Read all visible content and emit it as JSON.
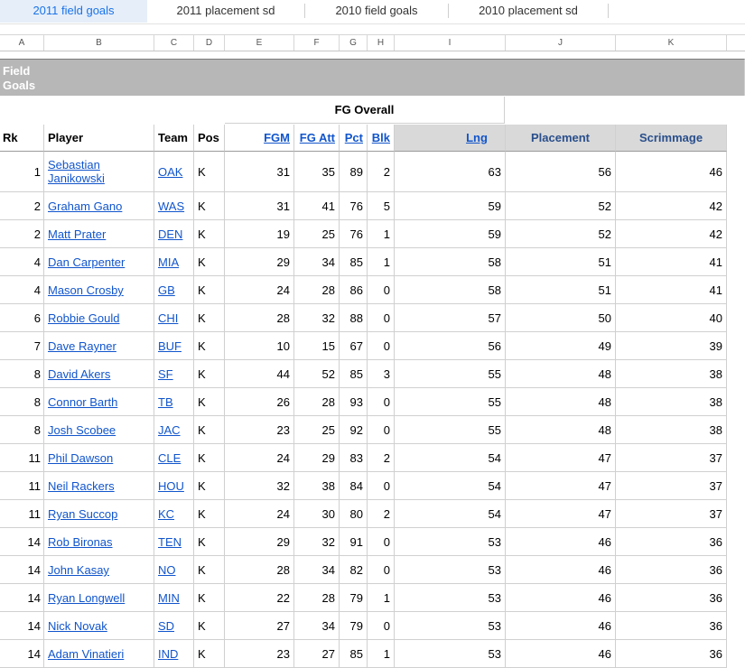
{
  "tabs": [
    {
      "label": "2011 field goals",
      "active": true
    },
    {
      "label": "2011 placement sd",
      "active": false
    },
    {
      "label": "2010 field goals",
      "active": false
    },
    {
      "label": "2010 placement sd",
      "active": false
    }
  ],
  "column_letters": [
    "A",
    "B",
    "C",
    "D",
    "E",
    "F",
    "G",
    "H",
    "I",
    "J",
    "K"
  ],
  "sheet": {
    "section_title_line1": "Field",
    "section_title_line2": "Goals",
    "group_header": "FG Overall",
    "headers": {
      "rk": "Rk",
      "player": "Player",
      "team": "Team",
      "pos": "Pos",
      "fgm": "FGM",
      "fgatt": "FG Att",
      "pct": "Pct",
      "blk": "Blk",
      "lng": "Lng",
      "placement": "Placement",
      "scrimmage": "Scrimmage"
    },
    "rows": [
      {
        "rk": "1",
        "player": "Sebastian Janikowski",
        "team": "OAK",
        "pos": "K",
        "fgm": "31",
        "fgatt": "35",
        "pct": "89",
        "blk": "2",
        "lng": "63",
        "placement": "56",
        "scrimmage": "46"
      },
      {
        "rk": "2",
        "player": "Graham Gano",
        "team": "WAS",
        "pos": "K",
        "fgm": "31",
        "fgatt": "41",
        "pct": "76",
        "blk": "5",
        "lng": "59",
        "placement": "52",
        "scrimmage": "42"
      },
      {
        "rk": "2",
        "player": "Matt Prater",
        "team": "DEN",
        "pos": "K",
        "fgm": "19",
        "fgatt": "25",
        "pct": "76",
        "blk": "1",
        "lng": "59",
        "placement": "52",
        "scrimmage": "42"
      },
      {
        "rk": "4",
        "player": "Dan Carpenter",
        "team": "MIA",
        "pos": "K",
        "fgm": "29",
        "fgatt": "34",
        "pct": "85",
        "blk": "1",
        "lng": "58",
        "placement": "51",
        "scrimmage": "41"
      },
      {
        "rk": "4",
        "player": "Mason Crosby",
        "team": "GB",
        "pos": "K",
        "fgm": "24",
        "fgatt": "28",
        "pct": "86",
        "blk": "0",
        "lng": "58",
        "placement": "51",
        "scrimmage": "41"
      },
      {
        "rk": "6",
        "player": "Robbie Gould",
        "team": "CHI",
        "pos": "K",
        "fgm": "28",
        "fgatt": "32",
        "pct": "88",
        "blk": "0",
        "lng": "57",
        "placement": "50",
        "scrimmage": "40"
      },
      {
        "rk": "7",
        "player": "Dave Rayner",
        "team": "BUF",
        "pos": "K",
        "fgm": "10",
        "fgatt": "15",
        "pct": "67",
        "blk": "0",
        "lng": "56",
        "placement": "49",
        "scrimmage": "39"
      },
      {
        "rk": "8",
        "player": "David Akers",
        "team": "SF",
        "pos": "K",
        "fgm": "44",
        "fgatt": "52",
        "pct": "85",
        "blk": "3",
        "lng": "55",
        "placement": "48",
        "scrimmage": "38"
      },
      {
        "rk": "8",
        "player": "Connor Barth",
        "team": "TB",
        "pos": "K",
        "fgm": "26",
        "fgatt": "28",
        "pct": "93",
        "blk": "0",
        "lng": "55",
        "placement": "48",
        "scrimmage": "38"
      },
      {
        "rk": "8",
        "player": "Josh Scobee",
        "team": "JAC",
        "pos": "K",
        "fgm": "23",
        "fgatt": "25",
        "pct": "92",
        "blk": "0",
        "lng": "55",
        "placement": "48",
        "scrimmage": "38"
      },
      {
        "rk": "11",
        "player": "Phil Dawson",
        "team": "CLE",
        "pos": "K",
        "fgm": "24",
        "fgatt": "29",
        "pct": "83",
        "blk": "2",
        "lng": "54",
        "placement": "47",
        "scrimmage": "37"
      },
      {
        "rk": "11",
        "player": "Neil Rackers",
        "team": "HOU",
        "pos": "K",
        "fgm": "32",
        "fgatt": "38",
        "pct": "84",
        "blk": "0",
        "lng": "54",
        "placement": "47",
        "scrimmage": "37"
      },
      {
        "rk": "11",
        "player": "Ryan Succop",
        "team": "KC",
        "pos": "K",
        "fgm": "24",
        "fgatt": "30",
        "pct": "80",
        "blk": "2",
        "lng": "54",
        "placement": "47",
        "scrimmage": "37"
      },
      {
        "rk": "14",
        "player": "Rob Bironas",
        "team": "TEN",
        "pos": "K",
        "fgm": "29",
        "fgatt": "32",
        "pct": "91",
        "blk": "0",
        "lng": "53",
        "placement": "46",
        "scrimmage": "36"
      },
      {
        "rk": "14",
        "player": "John Kasay",
        "team": "NO",
        "pos": "K",
        "fgm": "28",
        "fgatt": "34",
        "pct": "82",
        "blk": "0",
        "lng": "53",
        "placement": "46",
        "scrimmage": "36"
      },
      {
        "rk": "14",
        "player": "Ryan Longwell",
        "team": "MIN",
        "pos": "K",
        "fgm": "22",
        "fgatt": "28",
        "pct": "79",
        "blk": "1",
        "lng": "53",
        "placement": "46",
        "scrimmage": "36"
      },
      {
        "rk": "14",
        "player": "Nick Novak",
        "team": "SD",
        "pos": "K",
        "fgm": "27",
        "fgatt": "34",
        "pct": "79",
        "blk": "0",
        "lng": "53",
        "placement": "46",
        "scrimmage": "36"
      },
      {
        "rk": "14",
        "player": "Adam Vinatieri",
        "team": "IND",
        "pos": "K",
        "fgm": "23",
        "fgatt": "27",
        "pct": "85",
        "blk": "1",
        "lng": "53",
        "placement": "46",
        "scrimmage": "36"
      }
    ]
  }
}
